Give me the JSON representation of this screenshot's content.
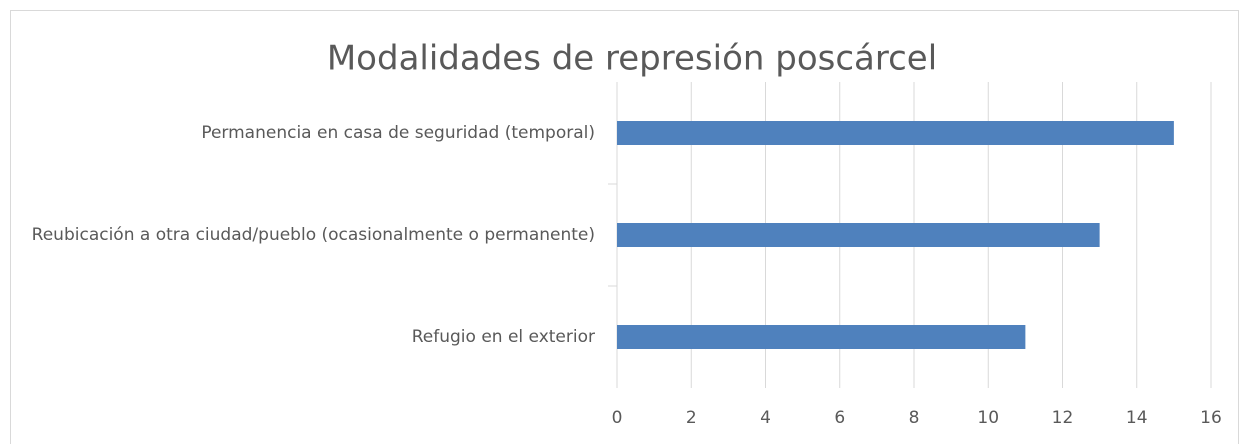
{
  "chart_data": {
    "type": "bar",
    "orientation": "horizontal",
    "title": "Modalidades de represión poscárcel",
    "categories": [
      "Permanencia en casa de seguridad (temporal)",
      "Reubicación a otra ciudad/pueblo (ocasionalmente o permanente)",
      "Refugio en el exterior"
    ],
    "values": [
      15,
      13,
      11
    ],
    "color": "#4f81bd",
    "xlim": [
      0,
      16
    ],
    "xticks": [
      0,
      2,
      4,
      6,
      8,
      10,
      12,
      14,
      16
    ],
    "grid": true
  }
}
